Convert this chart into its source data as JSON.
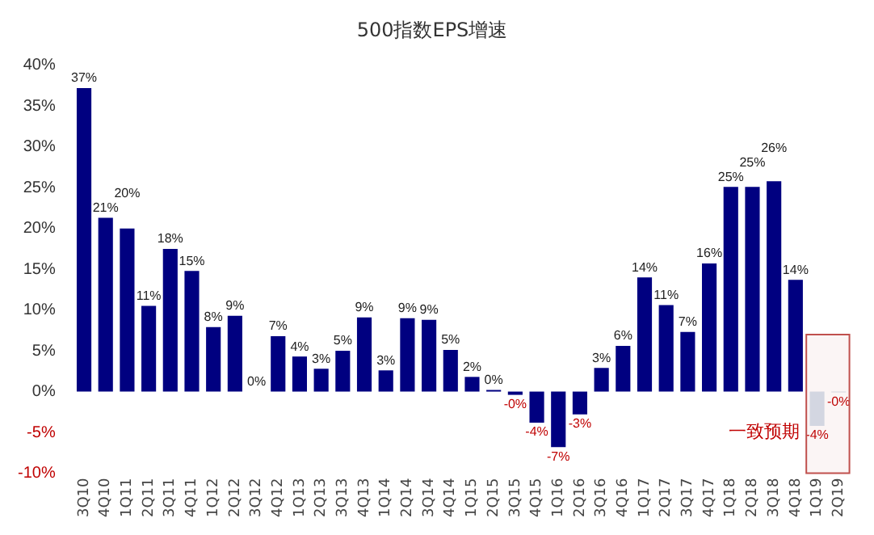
{
  "chart_data": {
    "type": "bar",
    "title": "500指数EPS增速",
    "categories": [
      "3Q10",
      "4Q10",
      "1Q11",
      "2Q11",
      "3Q11",
      "4Q11",
      "1Q12",
      "2Q12",
      "3Q12",
      "4Q12",
      "1Q13",
      "2Q13",
      "3Q13",
      "4Q13",
      "1Q14",
      "2Q14",
      "3Q14",
      "4Q14",
      "1Q15",
      "2Q15",
      "3Q15",
      "4Q15",
      "1Q16",
      "2Q16",
      "3Q16",
      "4Q16",
      "1Q17",
      "2Q17",
      "3Q17",
      "4Q17",
      "1Q18",
      "2Q18",
      "3Q18",
      "4Q18",
      "1Q19",
      "2Q19"
    ],
    "values": [
      37.2,
      21.3,
      20,
      10.5,
      17.5,
      14.8,
      7.9,
      9.3,
      0,
      6.8,
      4.3,
      2.8,
      5,
      9.1,
      2.6,
      9,
      8.8,
      5.1,
      1.8,
      0.2,
      -0.4,
      -3.8,
      -6.8,
      -2.8,
      2.9,
      5.6,
      14,
      10.6,
      7.3,
      15.7,
      25.1,
      25.1,
      25.8,
      13.7,
      -4.2,
      -0.1
    ],
    "value_labels": [
      "37%",
      "21%",
      "20%",
      "11%",
      "18%",
      "15%",
      "8%",
      "9%",
      "0%",
      "7%",
      "4%",
      "3%",
      "5%",
      "9%",
      "3%",
      "9%",
      "9%",
      "5%",
      "2%",
      "0%",
      "-0%",
      "-4%",
      "-7%",
      "-3%",
      "3%",
      "6%",
      "14%",
      "11%",
      "7%",
      "16%",
      "25%",
      "25%",
      "26%",
      "14%",
      "-4%",
      "-0%"
    ],
    "colors": [
      "#000080",
      "#000080",
      "#000080",
      "#000080",
      "#000080",
      "#000080",
      "#000080",
      "#000080",
      "#000080",
      "#000080",
      "#000080",
      "#000080",
      "#000080",
      "#000080",
      "#000080",
      "#000080",
      "#000080",
      "#000080",
      "#000080",
      "#000080",
      "#000080",
      "#000080",
      "#000080",
      "#000080",
      "#000080",
      "#000080",
      "#000080",
      "#000080",
      "#000080",
      "#000080",
      "#000080",
      "#000080",
      "#000080",
      "#000080",
      "#d5dfea",
      "#d5dfea"
    ],
    "ylim": [
      -10,
      40
    ],
    "yticks": [
      {
        "value": -10,
        "label": "-10%"
      },
      {
        "value": -5,
        "label": "-5%"
      },
      {
        "value": 0,
        "label": "0%"
      },
      {
        "value": 5,
        "label": "5%"
      },
      {
        "value": 10,
        "label": "10%"
      },
      {
        "value": 15,
        "label": "15%"
      },
      {
        "value": 20,
        "label": "20%"
      },
      {
        "value": 25,
        "label": "25%"
      },
      {
        "value": 30,
        "label": "30%"
      },
      {
        "value": 35,
        "label": "35%"
      },
      {
        "value": 40,
        "label": "40%"
      }
    ],
    "bands": [
      {
        "axis": "x",
        "from": "1Q19",
        "to": "2Q19",
        "label": "一致预期",
        "color": "#c0504d"
      }
    ],
    "grid": false,
    "legend": false
  }
}
